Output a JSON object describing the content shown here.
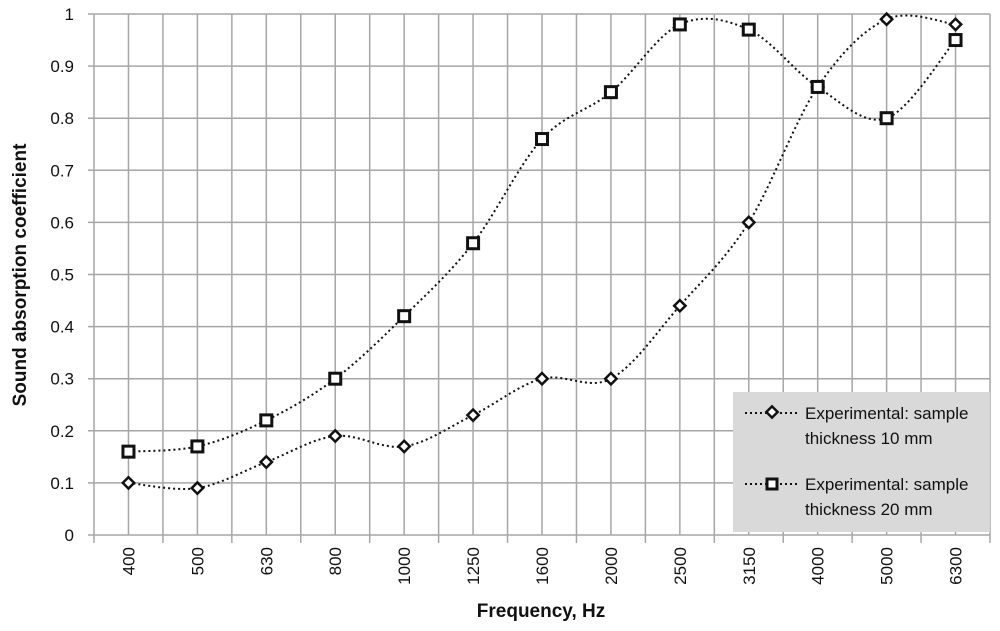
{
  "chart_data": {
    "type": "line",
    "title": "",
    "xlabel": "Frequency, Hz",
    "ylabel": "Sound absorption coefficient",
    "categories": [
      "400",
      "500",
      "630",
      "800",
      "1000",
      "1250",
      "1600",
      "2000",
      "2500",
      "3150",
      "4000",
      "5000",
      "6300"
    ],
    "ylim": [
      0,
      1
    ],
    "yticks": [
      "0",
      "0.1",
      "0.2",
      "0.3",
      "0.4",
      "0.5",
      "0.6",
      "0.7",
      "0.8",
      "0.9",
      "1"
    ],
    "grid": true,
    "smooth": true,
    "legend_position": "bottom-right",
    "legend_background": "#d9d9d9",
    "series": [
      {
        "name": "Experimental: sample thickness 10 mm",
        "legend_lines": [
          "Experimental: sample",
          "thickness 10 mm"
        ],
        "marker": "diamond",
        "line_style": "dotted",
        "color": "#111111",
        "values": [
          0.1,
          0.09,
          0.14,
          0.19,
          0.17,
          0.23,
          0.3,
          0.3,
          0.44,
          0.6,
          0.86,
          0.99,
          0.98
        ]
      },
      {
        "name": "Experimental: sample thickness 20 mm",
        "legend_lines": [
          "Experimental: sample",
          "thickness 20 mm"
        ],
        "marker": "square",
        "line_style": "dotted",
        "color": "#111111",
        "values": [
          0.16,
          0.17,
          0.22,
          0.3,
          0.42,
          0.56,
          0.76,
          0.85,
          0.98,
          0.97,
          0.86,
          0.8,
          0.95
        ]
      }
    ]
  }
}
